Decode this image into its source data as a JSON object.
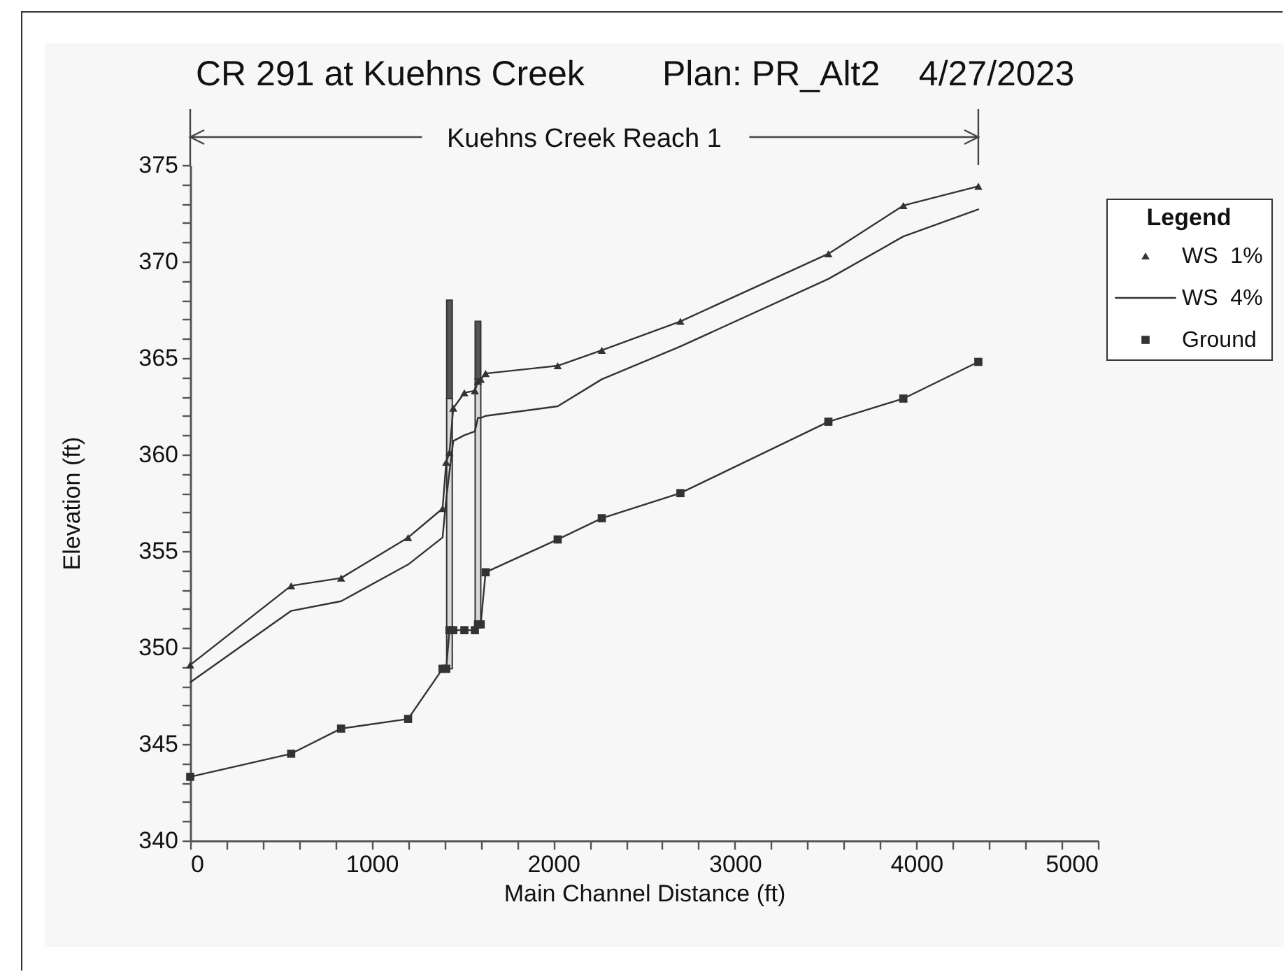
{
  "chart_data": {
    "type": "line",
    "title": "CR 291 at Kuehns Creek        Plan: PR_Alt2    4/27/2023",
    "xlabel": "Main Channel Distance (ft)",
    "ylabel": "Elevation (ft)",
    "legend_title": "Legend",
    "annotations": [
      "Kuehns Creek Reach 1"
    ],
    "x": [
      0,
      556,
      831,
      1200,
      1390,
      1410,
      1428,
      1449,
      1510,
      1568,
      1585,
      1600,
      1627,
      2024,
      2267,
      2700,
      3515,
      3928,
      4341
    ],
    "series": [
      {
        "type": "bar",
        "base": [
          null,
          null,
          null,
          null,
          null,
          null,
          348.9,
          null,
          null,
          null,
          351.2,
          null,
          null,
          null,
          null,
          null,
          null,
          null,
          null
        ],
        "values": [
          null,
          null,
          null,
          null,
          null,
          null,
          14.0,
          null,
          null,
          null,
          12.7,
          null,
          null,
          null,
          null,
          null,
          null,
          null,
          null
        ],
        "color": "#d9d9d9"
      },
      {
        "type": "bar",
        "base": [
          null,
          null,
          null,
          null,
          null,
          null,
          362.9,
          null,
          null,
          null,
          363.9,
          null,
          null,
          null,
          null,
          null,
          null,
          null,
          null
        ],
        "values": [
          null,
          null,
          null,
          null,
          null,
          null,
          5.1,
          null,
          null,
          null,
          3.0,
          null,
          null,
          null,
          null,
          null,
          null,
          null,
          null
        ],
        "color": "#555555"
      },
      {
        "name": "WS  1%",
        "color": "#333333",
        "marker": "triangle",
        "values": [
          349.1,
          353.2,
          353.6,
          355.7,
          357.2,
          359.6,
          360.1,
          362.4,
          363.2,
          363.3,
          363.8,
          363.9,
          364.2,
          364.6,
          365.4,
          366.9,
          370.4,
          372.9,
          373.9
        ]
      },
      {
        "name": "WS  4%",
        "color": "#333333",
        "marker": "none",
        "values": [
          348.2,
          351.9,
          352.4,
          354.3,
          355.7,
          357.7,
          359.1,
          360.7,
          361.0,
          361.2,
          361.9,
          361.9,
          362.0,
          362.5,
          363.9,
          365.6,
          369.1,
          371.3,
          372.7
        ]
      },
      {
        "name": "Ground",
        "color": "#333333",
        "marker": "square",
        "values": [
          343.3,
          344.5,
          345.8,
          346.3,
          348.9,
          348.9,
          350.9,
          350.9,
          350.9,
          350.9,
          351.2,
          351.2,
          353.9,
          355.6,
          356.7,
          358.0,
          361.7,
          362.9,
          364.8
        ]
      }
    ],
    "xlim": [
      0,
      5000
    ],
    "xticks": [
      0,
      {
        "value": 200,
        "label": null
      },
      {
        "value": 400,
        "label": null
      },
      {
        "value": 600,
        "label": null
      },
      {
        "value": 800,
        "label": null
      },
      1000,
      {
        "value": 1200,
        "label": null
      },
      {
        "value": 1400,
        "label": null
      },
      {
        "value": 1600,
        "label": null
      },
      {
        "value": 1800,
        "label": null
      },
      2000,
      {
        "value": 2200,
        "label": null
      },
      {
        "value": 2400,
        "label": null
      },
      {
        "value": 2600,
        "label": null
      },
      {
        "value": 2800,
        "label": null
      },
      3000,
      {
        "value": 3200,
        "label": null
      },
      {
        "value": 3400,
        "label": null
      },
      {
        "value": 3600,
        "label": null
      },
      {
        "value": 3800,
        "label": null
      },
      4000,
      {
        "value": 4200,
        "label": null
      },
      {
        "value": 4400,
        "label": null
      },
      {
        "value": 4600,
        "label": null
      },
      {
        "value": 4800,
        "label": null
      },
      5000
    ],
    "ylim": [
      340,
      375
    ],
    "yticks": [
      340,
      {
        "value": 341,
        "label": null
      },
      {
        "value": 342,
        "label": null
      },
      {
        "value": 343,
        "label": null
      },
      {
        "value": 344,
        "label": null
      },
      345,
      {
        "value": 346,
        "label": null
      },
      {
        "value": 347,
        "label": null
      },
      {
        "value": 348,
        "label": null
      },
      {
        "value": 349,
        "label": null
      },
      350,
      {
        "value": 351,
        "label": null
      },
      {
        "value": 352,
        "label": null
      },
      {
        "value": 353,
        "label": null
      },
      {
        "value": 354,
        "label": null
      },
      355,
      {
        "value": 356,
        "label": null
      },
      {
        "value": 357,
        "label": null
      },
      {
        "value": 358,
        "label": null
      },
      {
        "value": 359,
        "label": null
      },
      360,
      {
        "value": 361,
        "label": null
      },
      {
        "value": 362,
        "label": null
      },
      {
        "value": 363,
        "label": null
      },
      {
        "value": 364,
        "label": null
      },
      365,
      {
        "value": 366,
        "label": null
      },
      {
        "value": 367,
        "label": null
      },
      {
        "value": 368,
        "label": null
      },
      {
        "value": 369,
        "label": null
      },
      370,
      {
        "value": 371,
        "label": null
      },
      {
        "value": 372,
        "label": null
      },
      {
        "value": 373,
        "label": null
      },
      {
        "value": 374,
        "label": null
      },
      375
    ],
    "legend": "top right"
  }
}
